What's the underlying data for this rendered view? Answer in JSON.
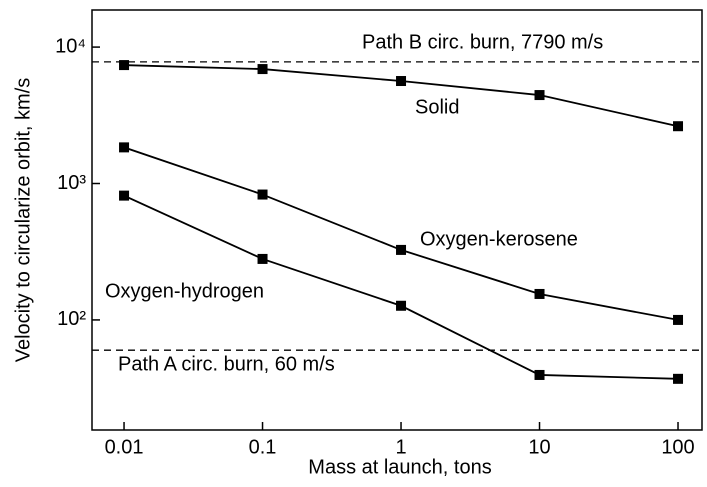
{
  "chart_data": {
    "type": "line",
    "xlabel": "Mass at launch,  tons",
    "ylabel": "Velocity to circularize orbit,  km/s",
    "x": [
      0.01,
      0.1,
      1,
      10,
      100
    ],
    "xscale": "log",
    "yscale": "log",
    "xlim": [
      0.00587,
      149
    ],
    "ylim": [
      15.6,
      18700
    ],
    "xticks": [
      0.01,
      0.1,
      1,
      10,
      100
    ],
    "yticks": [
      {
        "value": 100,
        "label": "10²"
      },
      {
        "value": 1000,
        "label": "10³"
      },
      {
        "value": 10000,
        "label": "10⁴"
      }
    ],
    "series": [
      {
        "name": "Solid",
        "color": "#000000",
        "values": [
          7380,
          6900,
          5640,
          4450,
          2630
        ]
      },
      {
        "name": "Oxygen-kerosene",
        "color": "#000000",
        "values": [
          1840,
          830,
          326,
          155,
          100
        ]
      },
      {
        "name": "Oxygen-hydrogen",
        "color": "#000000",
        "values": [
          815,
          280,
          127,
          39.5,
          37
        ]
      }
    ],
    "reference_lines": [
      {
        "value": 7790,
        "label": "Path B circ. burn, 7790 m/s"
      },
      {
        "value": 60,
        "label": "Path A circ. burn, 60 m/s"
      }
    ]
  }
}
